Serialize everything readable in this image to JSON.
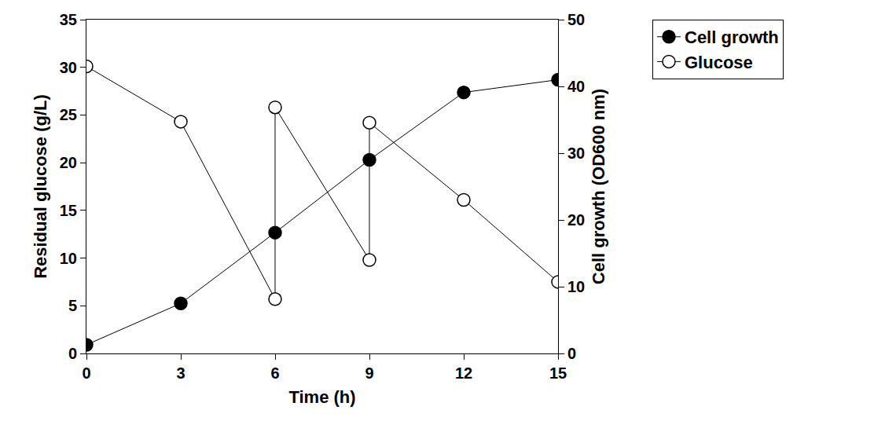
{
  "chart_data": {
    "type": "line",
    "x_label": "Time (h)",
    "y_label": "Residual glucose (g/L)",
    "y2_label": "Cell growth (OD600 nm)",
    "xlim": [
      0,
      15
    ],
    "xticks": [
      0,
      3,
      6,
      9,
      12,
      15
    ],
    "ylim": [
      0,
      35
    ],
    "yticks": [
      0,
      5,
      10,
      15,
      20,
      25,
      30,
      35
    ],
    "y2lim": [
      0,
      50
    ],
    "y2ticks": [
      0,
      10,
      20,
      30,
      40,
      50
    ],
    "grid": false,
    "legend": "outside top right",
    "series": [
      {
        "name": "Cell growth",
        "color": "#000000",
        "marker": "filled_circle",
        "line_style": "solid",
        "axis": "y2",
        "x": [
          0,
          3,
          6,
          9,
          12,
          15
        ],
        "values": [
          1.3,
          7.5,
          18.1,
          29.0,
          39.1,
          41.0
        ]
      },
      {
        "name": "Glucose",
        "color": "#000000",
        "marker": "open_circle",
        "line_style": "solid",
        "axis": "y",
        "x": [
          0,
          3,
          6,
          6,
          9,
          9,
          12,
          15
        ],
        "values": [
          30.1,
          24.3,
          5.7,
          25.8,
          9.8,
          24.2,
          16.1,
          7.5
        ]
      }
    ]
  }
}
